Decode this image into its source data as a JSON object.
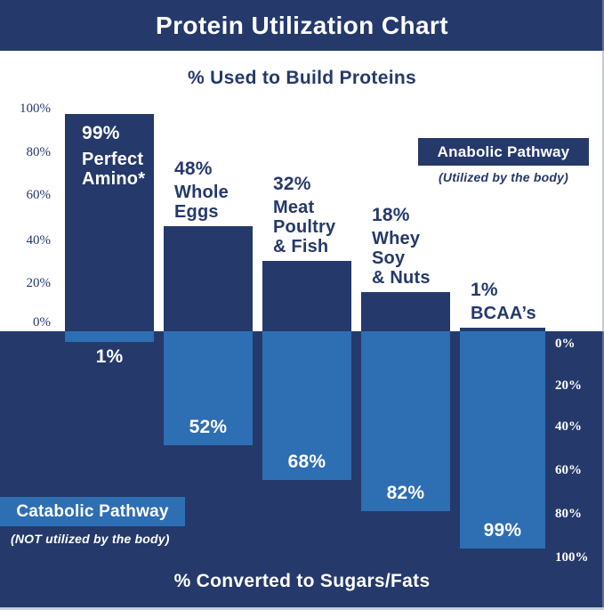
{
  "title": "Protein Utilization Chart",
  "upper_subtitle": "% Used to Build Proteins",
  "lower_subtitle": "% Converted to Sugars/Fats",
  "anabolic_tag": {
    "label": "Anabolic Pathway",
    "caption": "(Utilized by the body)"
  },
  "catabolic_tag": {
    "label": "Catabolic Pathway",
    "caption": "(NOT utilized by the body)"
  },
  "left_axis_ticks": [
    "100%",
    "80%",
    "60%",
    "40%",
    "20%",
    "0%"
  ],
  "right_axis_ticks": [
    "0%",
    "20%",
    "40%",
    "60%",
    "80%",
    "100%"
  ],
  "colors": {
    "navy": "#25396b",
    "light_blue": "#2e6eb3",
    "upper_background": "#ffffff",
    "text_on_dark": "#ffffff"
  },
  "chart_data": {
    "type": "bar",
    "title": "Protein Utilization Chart",
    "upper_axis_label": "% Used to Build Proteins",
    "lower_axis_label": "% Converted to Sugars/Fats",
    "axis_range": [
      0,
      100
    ],
    "grid": false,
    "categories": [
      "Perfect Amino*",
      "Whole Eggs",
      "Meat Poultry & Fish",
      "Whey Soy & Nuts",
      "BCAA’s"
    ],
    "category_name_lines": [
      [
        "Perfect",
        "Amino*"
      ],
      [
        "Whole",
        "Eggs"
      ],
      [
        "Meat",
        "Poultry",
        "& Fish"
      ],
      [
        "Whey",
        "Soy",
        "& Nuts"
      ],
      [
        "BCAA’s"
      ]
    ],
    "series": [
      {
        "name": "Anabolic Pathway (utilized by the body)",
        "direction": "up",
        "color": "#25396b",
        "values": [
          99,
          48,
          32,
          18,
          1
        ],
        "value_labels": [
          "99%",
          "48%",
          "32%",
          "18%",
          "1%"
        ]
      },
      {
        "name": "Catabolic Pathway (NOT utilized by the body)",
        "direction": "down",
        "color": "#2e6eb3",
        "values": [
          1,
          52,
          68,
          82,
          99
        ],
        "value_labels": [
          "1%",
          "52%",
          "68%",
          "82%",
          "99%"
        ]
      }
    ]
  }
}
